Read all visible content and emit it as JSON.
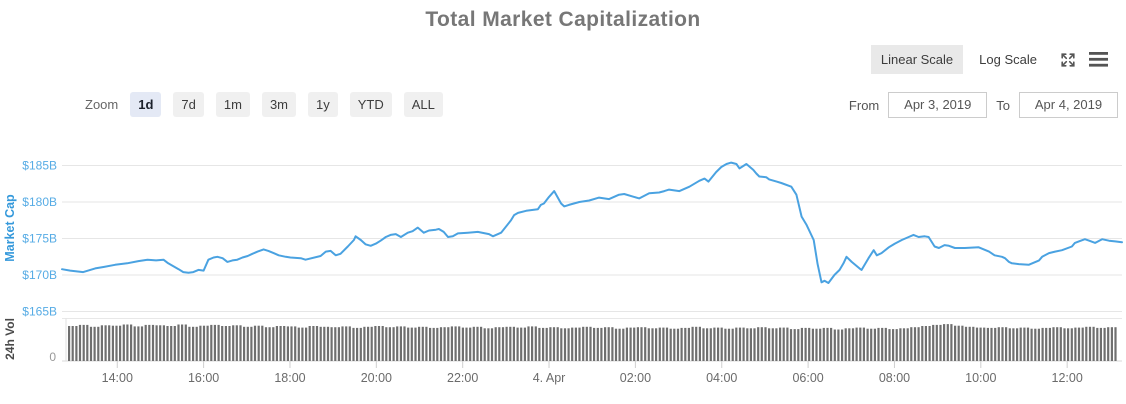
{
  "header": {
    "title": "Total Market Capitalization"
  },
  "toolbar": {
    "linear_scale": "Linear Scale",
    "log_scale": "Log Scale",
    "active_scale": "Linear Scale",
    "icons": [
      "fullscreen-icon",
      "menu-icon"
    ]
  },
  "zoom_controls": {
    "label": "Zoom",
    "options": [
      "1d",
      "7d",
      "1m",
      "3m",
      "1y",
      "YTD",
      "ALL"
    ],
    "active": "1d"
  },
  "date_range": {
    "from_label": "From",
    "from_value": "Apr 3, 2019",
    "to_label": "To",
    "to_value": "Apr 4, 2019"
  },
  "chart_data": {
    "type": "line",
    "title": "Total Market Capitalization",
    "ylabel": "Market Cap",
    "y_unit": "USD billions",
    "yticks": [
      165,
      170,
      175,
      180,
      185
    ],
    "ytick_labels": [
      "$165B",
      "$170B",
      "$175B",
      "$180B",
      "$185B"
    ],
    "ylim": [
      165,
      187
    ],
    "x_domain_hours": [
      12.72,
      37.27
    ],
    "xticks": [
      14,
      16,
      18,
      20,
      22,
      24,
      26,
      28,
      30,
      32,
      34,
      36
    ],
    "xtick_labels": [
      "14:00",
      "16:00",
      "18:00",
      "20:00",
      "22:00",
      "4. Apr",
      "02:00",
      "04:00",
      "06:00",
      "08:00",
      "10:00",
      "12:00"
    ],
    "grid": "horizontal",
    "legend": "none",
    "colors": {
      "line": "#4AA2E1",
      "ytick_text": "#57ACE5",
      "ylabel_text": "#3599DB",
      "volume_bar": "#6F6F6F",
      "volume_label_text": "#4a4a4a",
      "xtick_text": "#6b6b6b",
      "gridline": "#e6e6e6"
    },
    "series": {
      "name": "Market Cap",
      "points": [
        [
          12.72,
          170.8
        ],
        [
          12.91,
          170.6
        ],
        [
          13.21,
          170.4
        ],
        [
          13.49,
          170.9
        ],
        [
          13.68,
          171.1
        ],
        [
          13.95,
          171.4
        ],
        [
          14.23,
          171.6
        ],
        [
          14.49,
          171.9
        ],
        [
          14.7,
          172.1
        ],
        [
          14.9,
          172.0
        ],
        [
          15.07,
          172.1
        ],
        [
          15.18,
          171.6
        ],
        [
          15.3,
          171.2
        ],
        [
          15.42,
          170.8
        ],
        [
          15.53,
          170.4
        ],
        [
          15.65,
          170.3
        ],
        [
          15.76,
          170.4
        ],
        [
          15.88,
          170.7
        ],
        [
          16.0,
          170.6
        ],
        [
          16.11,
          172.1
        ],
        [
          16.23,
          172.4
        ],
        [
          16.32,
          172.5
        ],
        [
          16.44,
          172.3
        ],
        [
          16.55,
          171.8
        ],
        [
          16.67,
          172.0
        ],
        [
          16.78,
          172.1
        ],
        [
          16.9,
          172.4
        ],
        [
          17.02,
          172.6
        ],
        [
          17.13,
          172.9
        ],
        [
          17.25,
          173.2
        ],
        [
          17.39,
          173.5
        ],
        [
          17.5,
          173.3
        ],
        [
          17.62,
          173.0
        ],
        [
          17.74,
          172.7
        ],
        [
          17.9,
          172.5
        ],
        [
          18.01,
          172.4
        ],
        [
          18.25,
          172.3
        ],
        [
          18.36,
          172.1
        ],
        [
          18.71,
          172.6
        ],
        [
          18.83,
          173.2
        ],
        [
          18.94,
          173.3
        ],
        [
          19.06,
          172.7
        ],
        [
          19.17,
          172.9
        ],
        [
          19.34,
          173.9
        ],
        [
          19.48,
          174.8
        ],
        [
          19.52,
          175.3
        ],
        [
          19.64,
          174.8
        ],
        [
          19.75,
          174.2
        ],
        [
          19.87,
          174.0
        ],
        [
          19.99,
          174.3
        ],
        [
          20.1,
          174.7
        ],
        [
          20.22,
          175.2
        ],
        [
          20.33,
          175.5
        ],
        [
          20.45,
          175.6
        ],
        [
          20.57,
          175.2
        ],
        [
          20.73,
          175.8
        ],
        [
          20.84,
          176.0
        ],
        [
          20.96,
          176.5
        ],
        [
          21.1,
          175.8
        ],
        [
          21.22,
          176.1
        ],
        [
          21.38,
          176.2
        ],
        [
          21.45,
          176.3
        ],
        [
          21.56,
          175.9
        ],
        [
          21.66,
          175.2
        ],
        [
          21.77,
          175.3
        ],
        [
          21.89,
          175.7
        ],
        [
          22.12,
          175.8
        ],
        [
          22.35,
          175.9
        ],
        [
          22.61,
          175.6
        ],
        [
          22.7,
          175.3
        ],
        [
          22.89,
          175.8
        ],
        [
          23.12,
          177.5
        ],
        [
          23.19,
          178.2
        ],
        [
          23.28,
          178.5
        ],
        [
          23.47,
          178.8
        ],
        [
          23.74,
          179.0
        ],
        [
          23.81,
          179.6
        ],
        [
          23.88,
          179.8
        ],
        [
          24.0,
          180.7
        ],
        [
          24.12,
          181.5
        ],
        [
          24.28,
          179.8
        ],
        [
          24.35,
          179.4
        ],
        [
          24.46,
          179.6
        ],
        [
          24.7,
          180.0
        ],
        [
          24.93,
          180.2
        ],
        [
          25.16,
          180.6
        ],
        [
          25.39,
          180.4
        ],
        [
          25.62,
          181.0
        ],
        [
          25.74,
          181.1
        ],
        [
          25.97,
          180.7
        ],
        [
          26.09,
          180.5
        ],
        [
          26.32,
          181.2
        ],
        [
          26.55,
          181.3
        ],
        [
          26.67,
          181.5
        ],
        [
          26.78,
          181.7
        ],
        [
          27.02,
          181.5
        ],
        [
          27.25,
          182.1
        ],
        [
          27.48,
          182.9
        ],
        [
          27.6,
          183.2
        ],
        [
          27.69,
          182.8
        ],
        [
          27.87,
          184.1
        ],
        [
          27.99,
          184.8
        ],
        [
          28.11,
          185.2
        ],
        [
          28.22,
          185.4
        ],
        [
          28.34,
          185.2
        ],
        [
          28.41,
          184.6
        ],
        [
          28.57,
          185.2
        ],
        [
          28.73,
          184.4
        ],
        [
          28.8,
          183.9
        ],
        [
          28.87,
          183.5
        ],
        [
          29.03,
          183.4
        ],
        [
          29.1,
          183.1
        ],
        [
          29.27,
          182.8
        ],
        [
          29.38,
          182.6
        ],
        [
          29.61,
          182.1
        ],
        [
          29.73,
          181.0
        ],
        [
          29.85,
          178.0
        ],
        [
          29.96,
          176.9
        ],
        [
          30.13,
          174.8
        ],
        [
          30.22,
          171.5
        ],
        [
          30.31,
          169.0
        ],
        [
          30.38,
          169.2
        ],
        [
          30.47,
          168.9
        ],
        [
          30.61,
          170.0
        ],
        [
          30.73,
          170.7
        ],
        [
          30.82,
          171.6
        ],
        [
          30.89,
          172.5
        ],
        [
          31.01,
          171.8
        ],
        [
          31.19,
          170.9
        ],
        [
          31.24,
          170.7
        ],
        [
          31.4,
          172.3
        ],
        [
          31.52,
          173.4
        ],
        [
          31.59,
          172.7
        ],
        [
          31.7,
          173.0
        ],
        [
          31.87,
          173.8
        ],
        [
          32.01,
          174.3
        ],
        [
          32.17,
          174.8
        ],
        [
          32.33,
          175.2
        ],
        [
          32.44,
          175.5
        ],
        [
          32.56,
          175.2
        ],
        [
          32.7,
          175.3
        ],
        [
          32.79,
          175.2
        ],
        [
          32.93,
          173.9
        ],
        [
          33.03,
          173.7
        ],
        [
          33.16,
          174.1
        ],
        [
          33.26,
          174.0
        ],
        [
          33.4,
          173.7
        ],
        [
          33.63,
          173.7
        ],
        [
          33.95,
          173.8
        ],
        [
          34.19,
          173.2
        ],
        [
          34.32,
          172.7
        ],
        [
          34.49,
          172.5
        ],
        [
          34.56,
          172.3
        ],
        [
          34.65,
          171.8
        ],
        [
          34.72,
          171.6
        ],
        [
          34.88,
          171.5
        ],
        [
          35.11,
          171.4
        ],
        [
          35.35,
          172.0
        ],
        [
          35.42,
          172.5
        ],
        [
          35.58,
          173.0
        ],
        [
          35.72,
          173.2
        ],
        [
          35.88,
          173.4
        ],
        [
          36.11,
          173.9
        ],
        [
          36.18,
          174.4
        ],
        [
          36.27,
          174.6
        ],
        [
          36.41,
          174.9
        ],
        [
          36.51,
          174.7
        ],
        [
          36.65,
          174.4
        ],
        [
          36.81,
          174.9
        ],
        [
          36.97,
          174.7
        ],
        [
          37.11,
          174.6
        ],
        [
          37.27,
          174.5
        ]
      ]
    },
    "volume": {
      "label": "24h Vol",
      "baseline_label": "0",
      "bar_count": 288,
      "relative_heights": [
        0.92,
        0.95,
        0.9,
        0.94,
        0.93,
        0.96,
        0.91,
        0.95,
        0.94,
        0.92,
        0.96,
        0.9,
        0.93,
        0.95,
        0.92,
        0.94,
        0.9,
        0.93,
        0.89,
        0.92,
        0.91,
        0.88,
        0.92,
        0.9,
        0.89,
        0.91,
        0.87,
        0.9,
        0.92,
        0.89,
        0.91,
        0.88,
        0.9,
        0.87,
        0.89,
        0.91,
        0.88,
        0.9,
        0.86,
        0.89,
        0.9,
        0.88,
        0.91,
        0.87,
        0.89,
        0.86,
        0.88,
        0.9,
        0.87,
        0.89,
        0.85,
        0.88,
        0.89,
        0.86,
        0.88,
        0.85,
        0.87,
        0.9,
        0.86,
        0.88,
        0.85,
        0.88,
        0.86,
        0.89,
        0.86,
        0.88,
        0.84,
        0.87,
        0.85,
        0.87,
        0.83,
        0.86,
        0.88,
        0.85,
        0.87,
        0.84,
        0.86,
        0.89,
        0.92,
        0.95,
        0.97,
        0.93,
        0.9,
        0.88,
        0.87,
        0.89,
        0.86,
        0.88,
        0.85,
        0.87,
        0.89,
        0.86,
        0.88,
        0.9,
        0.87,
        0.89
      ]
    }
  }
}
